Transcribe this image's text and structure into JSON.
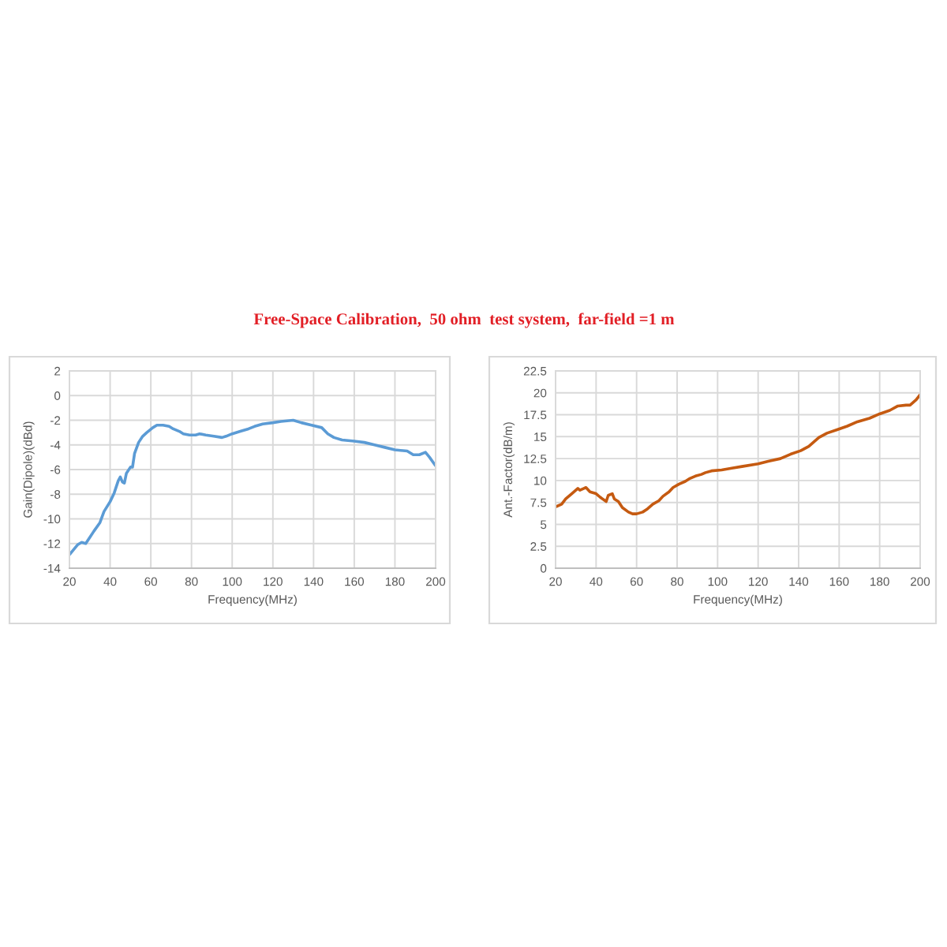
{
  "chart_data": [
    {
      "type": "line",
      "title": "Free-Space Calibration,  50 ohm  test system,  far-field =1 m",
      "xlabel": "Frequency(MHz)",
      "ylabel": "Gain(Dipole)(dBd)",
      "x": [
        20,
        22,
        24,
        26,
        28,
        30,
        32,
        35,
        37,
        40,
        42,
        44,
        45,
        46,
        47,
        48,
        50,
        51,
        52,
        54,
        56,
        58,
        61,
        63,
        66,
        69,
        71,
        74,
        76,
        79,
        82,
        84,
        87,
        91,
        95,
        97,
        100,
        104,
        108,
        111,
        115,
        120,
        124,
        130,
        134,
        139,
        144,
        147,
        150,
        154,
        160,
        165,
        170,
        175,
        180,
        186,
        189,
        192,
        195,
        197,
        200
      ],
      "series": [
        {
          "color": "#5b9bd5",
          "values": [
            -12.9,
            -12.5,
            -12.1,
            -11.9,
            -12.0,
            -11.5,
            -11.0,
            -10.3,
            -9.4,
            -8.6,
            -7.9,
            -6.9,
            -6.6,
            -7.0,
            -7.1,
            -6.3,
            -5.8,
            -5.8,
            -4.7,
            -3.8,
            -3.3,
            -3.0,
            -2.6,
            -2.4,
            -2.4,
            -2.5,
            -2.7,
            -2.9,
            -3.1,
            -3.2,
            -3.2,
            -3.1,
            -3.2,
            -3.3,
            -3.4,
            -3.3,
            -3.1,
            -2.9,
            -2.7,
            -2.5,
            -2.3,
            -2.2,
            -2.1,
            -2.0,
            -2.2,
            -2.4,
            -2.6,
            -3.1,
            -3.4,
            -3.6,
            -3.7,
            -3.8,
            -4.0,
            -4.2,
            -4.4,
            -4.5,
            -4.8,
            -4.8,
            -4.6,
            -5.0,
            -5.7
          ]
        }
      ],
      "xlim": [
        20,
        200
      ],
      "xticks": [
        20,
        40,
        60,
        80,
        100,
        120,
        140,
        160,
        180,
        200
      ],
      "ylim": [
        -14,
        2
      ],
      "yticks": [
        -14,
        -12,
        -10,
        -8,
        -6,
        -4,
        -2,
        0,
        2
      ],
      "grid": true
    },
    {
      "type": "line",
      "xlabel": "Frequency(MHz)",
      "ylabel": "Ant.-Factor(dB/m)",
      "x": [
        20,
        23,
        25,
        28,
        31,
        32,
        34,
        35,
        37,
        40,
        42,
        45,
        46,
        48,
        49,
        51,
        53,
        56,
        58,
        60,
        63,
        65,
        68,
        71,
        73,
        76,
        78,
        81,
        84,
        86,
        89,
        92,
        94,
        97,
        102,
        107,
        112,
        120,
        125,
        131,
        136,
        141,
        145,
        147,
        150,
        154,
        159,
        164,
        169,
        175,
        180,
        185,
        189,
        193,
        195,
        198,
        200
      ],
      "series": [
        {
          "color": "#c55a11",
          "values": [
            7.0,
            7.3,
            7.9,
            8.5,
            9.1,
            8.9,
            9.1,
            9.2,
            8.7,
            8.5,
            8.1,
            7.6,
            8.3,
            8.5,
            7.9,
            7.6,
            6.9,
            6.4,
            6.2,
            6.2,
            6.4,
            6.7,
            7.3,
            7.7,
            8.2,
            8.7,
            9.2,
            9.6,
            9.9,
            10.2,
            10.5,
            10.7,
            10.9,
            11.1,
            11.2,
            11.4,
            11.6,
            11.9,
            12.2,
            12.5,
            13.0,
            13.4,
            13.9,
            14.3,
            14.9,
            15.4,
            15.8,
            16.2,
            16.7,
            17.1,
            17.6,
            18.0,
            18.5,
            18.6,
            18.6,
            19.2,
            19.8
          ]
        }
      ],
      "xlim": [
        20,
        200
      ],
      "xticks": [
        20,
        40,
        60,
        80,
        100,
        120,
        140,
        160,
        180,
        200
      ],
      "ylim": [
        0,
        22.5
      ],
      "yticks": [
        0,
        2.5,
        5,
        7.5,
        10,
        12.5,
        15,
        17.5,
        20,
        22.5
      ],
      "grid": true
    }
  ]
}
